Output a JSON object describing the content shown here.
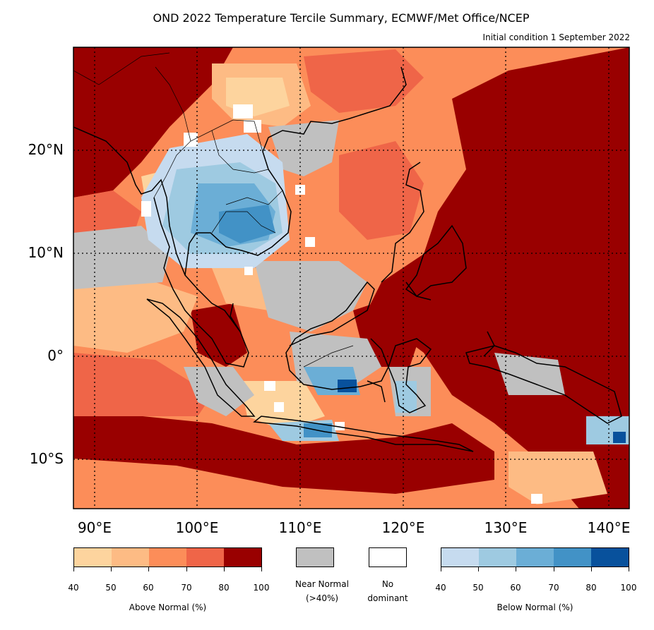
{
  "title": "OND 2022 Temperature Tercile Summary, ECMWF/Met Office/NCEP",
  "subtitle": "Initial condition 1 September 2022",
  "lat_labels": [
    "20°N",
    "10°N",
    "0°",
    "10°S"
  ],
  "lon_labels": [
    "90°E",
    "100°E",
    "110°E",
    "120°E",
    "130°E",
    "140°E"
  ],
  "above": {
    "title": "Above Normal (%)",
    "ticks": [
      "40",
      "50",
      "60",
      "70",
      "80",
      "100"
    ],
    "colors": [
      "#fdd49e",
      "#fdbb84",
      "#fc8d59",
      "#ef6548",
      "#990000"
    ]
  },
  "below": {
    "title": "Below Normal (%)",
    "ticks": [
      "40",
      "50",
      "60",
      "70",
      "80",
      "100"
    ],
    "colors": [
      "#c6dbef",
      "#9ecae1",
      "#6baed6",
      "#4292c6",
      "#08519c"
    ]
  },
  "near_normal": {
    "label_line1": "Near Normal",
    "label_line2": "(>40%)",
    "color": "#c0c0c0"
  },
  "no_dominant": {
    "label_line1": "No",
    "label_line2": "dominant",
    "color": "#ffffff"
  }
}
